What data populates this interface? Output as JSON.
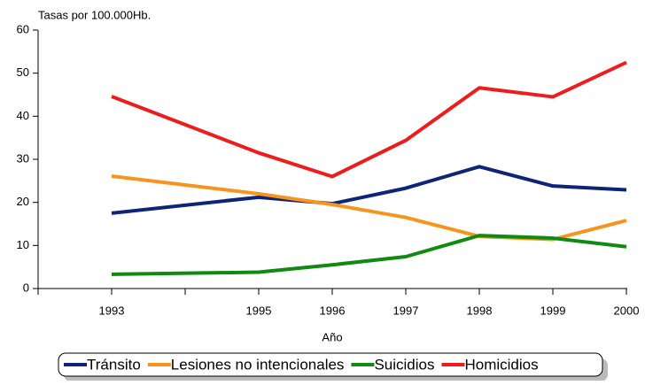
{
  "chart_data": {
    "type": "line",
    "title": "Tasas por 100.000Hb.",
    "x_label": "Año",
    "categories": [
      "1993",
      "1995",
      "1996",
      "1997",
      "1998",
      "1999",
      "2000"
    ],
    "ylim": [
      0,
      60
    ],
    "yticks": [
      0,
      10,
      20,
      30,
      40,
      50,
      60
    ],
    "series": [
      {
        "name": "Tránsito",
        "color": "#0d2478",
        "values": [
          17.5,
          21.2,
          19.7,
          23.3,
          28.3,
          23.8,
          22.9
        ]
      },
      {
        "name": "Lesiones no intencionales",
        "color": "#f7941d",
        "values": [
          26.1,
          22.0,
          19.5,
          16.5,
          12.1,
          11.4,
          15.8
        ]
      },
      {
        "name": "Suicidios",
        "color": "#118a11",
        "values": [
          3.3,
          3.8,
          5.5,
          7.4,
          12.3,
          11.7,
          9.7
        ]
      },
      {
        "name": "Homicidios",
        "color": "#ee1c1c",
        "values": [
          44.6,
          31.5,
          26.0,
          34.4,
          46.6,
          44.5,
          52.5
        ]
      }
    ]
  }
}
